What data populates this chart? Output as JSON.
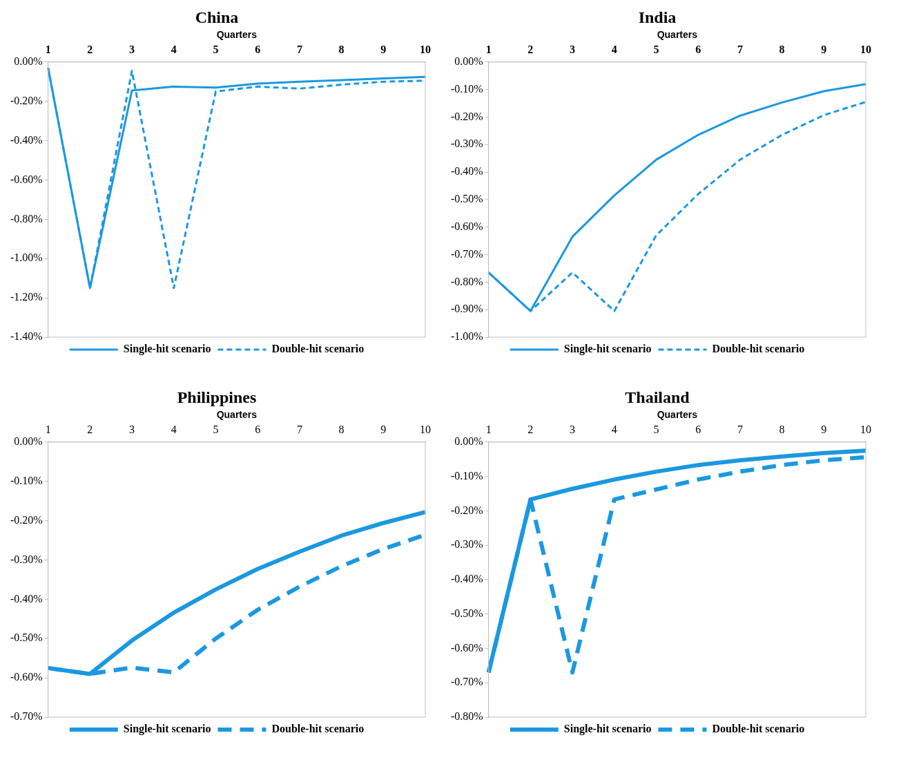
{
  "chart_data": [
    {
      "type": "line",
      "title": "China",
      "xlabel": "Quarters",
      "categories": [
        "1",
        "2",
        "3",
        "4",
        "5",
        "6",
        "7",
        "8",
        "9",
        "10"
      ],
      "ylim": [
        -1.4,
        0
      ],
      "yticks": [
        {
          "value": 0,
          "label": "0.00%"
        },
        {
          "value": -0.2,
          "label": "-0.20%"
        },
        {
          "value": -0.4,
          "label": "-0.40%"
        },
        {
          "value": -0.6,
          "label": "-0.60%"
        },
        {
          "value": -0.8,
          "label": "-0.80%"
        },
        {
          "value": -1.0,
          "label": "-1.00%"
        },
        {
          "value": -1.2,
          "label": "-1.20%"
        },
        {
          "value": -1.4,
          "label": "-1.40%"
        }
      ],
      "grid": false,
      "legend": "bottom",
      "marker": "none",
      "series": [
        {
          "name": "Single-hit scenario",
          "color": "#1b98e0",
          "line_style": "solid",
          "values": [
            -0.03,
            -1.15,
            -0.145,
            -0.125,
            -0.13,
            -0.11,
            -0.1,
            -0.092,
            -0.083,
            -0.075
          ]
        },
        {
          "name": "Double-hit scenario",
          "color": "#1b98e0",
          "line_style": "dashed",
          "values": [
            -0.03,
            -1.15,
            -0.045,
            -1.15,
            -0.15,
            -0.125,
            -0.135,
            -0.115,
            -0.1,
            -0.095
          ]
        }
      ]
    },
    {
      "type": "line",
      "title": "India",
      "xlabel": "Quarters",
      "categories": [
        "1",
        "2",
        "3",
        "4",
        "5",
        "6",
        "7",
        "8",
        "9",
        "10"
      ],
      "ylim": [
        -1.0,
        0
      ],
      "yticks": [
        {
          "value": 0,
          "label": "0.00%"
        },
        {
          "value": -0.1,
          "label": "-0.10%"
        },
        {
          "value": -0.2,
          "label": "-0.20%"
        },
        {
          "value": -0.3,
          "label": "-0.30%"
        },
        {
          "value": -0.4,
          "label": "-0.40%"
        },
        {
          "value": -0.5,
          "label": "-0.50%"
        },
        {
          "value": -0.6,
          "label": "-0.60%"
        },
        {
          "value": -0.7,
          "label": "-0.70%"
        },
        {
          "value": -0.8,
          "label": "-0.80%"
        },
        {
          "value": -0.9,
          "label": "-0.90%"
        },
        {
          "value": -1.0,
          "label": "-1.00%"
        }
      ],
      "grid": false,
      "legend": "bottom",
      "marker": "none",
      "series": [
        {
          "name": "Single-hit scenario",
          "color": "#1b98e0",
          "line_style": "solid",
          "values": [
            -0.765,
            -0.905,
            -0.635,
            -0.485,
            -0.355,
            -0.265,
            -0.195,
            -0.147,
            -0.106,
            -0.08
          ]
        },
        {
          "name": "Double-hit scenario",
          "color": "#1b98e0",
          "line_style": "dashed",
          "values": [
            -0.765,
            -0.905,
            -0.765,
            -0.905,
            -0.63,
            -0.48,
            -0.355,
            -0.265,
            -0.193,
            -0.145
          ]
        }
      ]
    },
    {
      "type": "line",
      "title": "Philippines",
      "xlabel": "Quarters",
      "categories": [
        "1",
        "2",
        "3",
        "4",
        "5",
        "6",
        "7",
        "8",
        "9",
        "10"
      ],
      "ylim": [
        -0.7,
        0
      ],
      "yticks": [
        {
          "value": 0,
          "label": "0.00%"
        },
        {
          "value": -0.1,
          "label": "-0.10%"
        },
        {
          "value": -0.2,
          "label": "-0.20%"
        },
        {
          "value": -0.3,
          "label": "-0.30%"
        },
        {
          "value": -0.4,
          "label": "-0.40%"
        },
        {
          "value": -0.5,
          "label": "-0.50%"
        },
        {
          "value": -0.6,
          "label": "-0.60%"
        },
        {
          "value": -0.7,
          "label": "-0.70%"
        }
      ],
      "grid": false,
      "legend": "bottom",
      "marker": "none",
      "series": [
        {
          "name": "Single-hit scenario",
          "color": "#1b98e0",
          "line_style": "solid",
          "values": [
            -0.575,
            -0.59,
            -0.505,
            -0.434,
            -0.375,
            -0.323,
            -0.279,
            -0.238,
            -0.206,
            -0.178
          ]
        },
        {
          "name": "Double-hit scenario",
          "color": "#1b98e0",
          "line_style": "dashed",
          "values": [
            -0.575,
            -0.59,
            -0.574,
            -0.586,
            -0.5,
            -0.427,
            -0.368,
            -0.316,
            -0.272,
            -0.236
          ]
        }
      ]
    },
    {
      "type": "line",
      "title": "Thailand",
      "xlabel": "Quarters",
      "categories": [
        "1",
        "2",
        "3",
        "4",
        "5",
        "6",
        "7",
        "8",
        "9",
        "10"
      ],
      "ylim": [
        -0.8,
        0
      ],
      "yticks": [
        {
          "value": 0,
          "label": "0.00%"
        },
        {
          "value": -0.1,
          "label": "-0.10%"
        },
        {
          "value": -0.2,
          "label": "-0.20%"
        },
        {
          "value": -0.3,
          "label": "-0.30%"
        },
        {
          "value": -0.4,
          "label": "-0.40%"
        },
        {
          "value": -0.5,
          "label": "-0.50%"
        },
        {
          "value": -0.6,
          "label": "-0.60%"
        },
        {
          "value": -0.7,
          "label": "-0.70%"
        },
        {
          "value": -0.8,
          "label": "-0.80%"
        }
      ],
      "grid": false,
      "legend": "bottom",
      "marker": "none",
      "series": [
        {
          "name": "Single-hit scenario",
          "color": "#1b98e0",
          "line_style": "solid",
          "values": [
            -0.67,
            -0.167,
            -0.136,
            -0.109,
            -0.086,
            -0.067,
            -0.053,
            -0.042,
            -0.032,
            -0.025
          ]
        },
        {
          "name": "Double-hit scenario",
          "color": "#1b98e0",
          "line_style": "dashed",
          "values": [
            -0.67,
            -0.167,
            -0.67,
            -0.167,
            -0.138,
            -0.109,
            -0.086,
            -0.067,
            -0.053,
            -0.044
          ]
        }
      ]
    }
  ]
}
